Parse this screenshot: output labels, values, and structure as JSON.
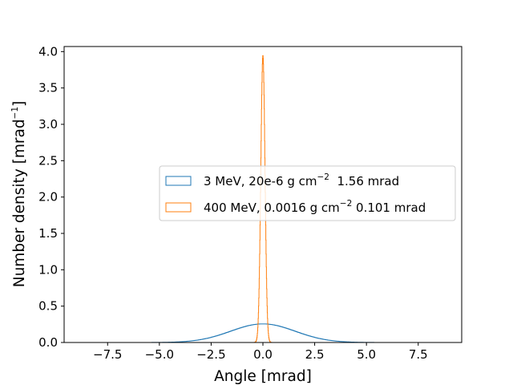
{
  "chart_data": {
    "type": "histogram",
    "title": "",
    "xlabel": "Angle [mrad]",
    "ylabel_main": "Number density [mrad",
    "ylabel_sup": "−1",
    "ylabel_close": "]",
    "xlim": [
      -9.6,
      9.6
    ],
    "ylim": [
      0,
      4.07
    ],
    "xticks": [
      -7.5,
      -5.0,
      -2.5,
      0.0,
      2.5,
      5.0,
      7.5
    ],
    "xtick_labels": [
      "−7.5",
      "−5.0",
      "−2.5",
      "0.0",
      "2.5",
      "5.0",
      "7.5"
    ],
    "yticks": [
      0.0,
      0.5,
      1.0,
      1.5,
      2.0,
      2.5,
      3.0,
      3.5,
      4.0
    ],
    "ytick_labels": [
      "0.0",
      "0.5",
      "1.0",
      "1.5",
      "2.0",
      "2.5",
      "3.0",
      "3.5",
      "4.0"
    ],
    "legend_position": "center-right",
    "series": [
      {
        "name": "3 MeV, 20e-6 g cm−2 1.56 mrad",
        "legend_parts": [
          "3 MeV, 20e-6 g cm",
          "−2",
          "  1.56 mrad"
        ],
        "color": "#1f77b4",
        "sigma": 1.56,
        "range": [
          -8.8,
          8.8
        ],
        "nbins": 440
      },
      {
        "name": "400 MeV, 0.0016 g cm−2 0.101 mrad",
        "legend_parts": [
          "400 MeV, 0.0016 g cm",
          "−2",
          " 0.101 mrad"
        ],
        "color": "#ff7f0e",
        "sigma": 0.101,
        "range": [
          -0.45,
          0.45
        ],
        "nbins": 90
      }
    ]
  }
}
